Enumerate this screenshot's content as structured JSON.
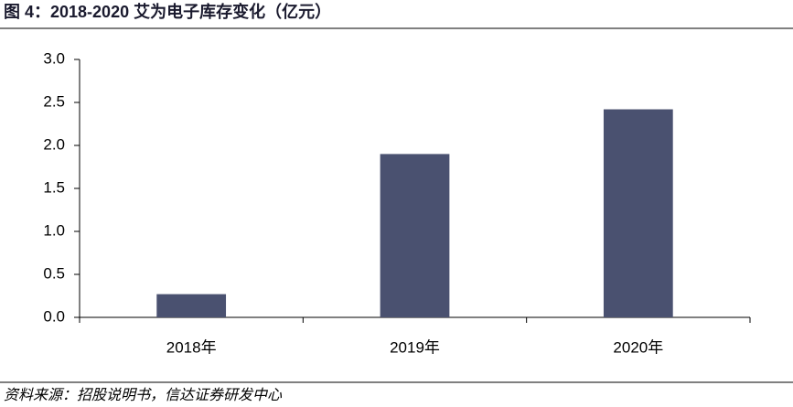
{
  "chart_data": {
    "type": "bar",
    "title": "图 4：2018-2020 艾为电子库存变化（亿元）",
    "source": "资料来源：招股说明书，信达证券研发中心",
    "categories": [
      "2018年",
      "2019年",
      "2020年"
    ],
    "values": [
      0.27,
      1.9,
      2.42
    ],
    "color": "#4a5170",
    "ylim": [
      0,
      3
    ],
    "yticks": [
      {
        "value": 0,
        "label": "0.0"
      },
      0.5,
      {
        "value": 1,
        "label": "1.0"
      },
      1.5,
      {
        "value": 2,
        "label": "2.0"
      },
      2.5,
      {
        "value": 3,
        "label": "3.0"
      }
    ],
    "grid": false
  }
}
